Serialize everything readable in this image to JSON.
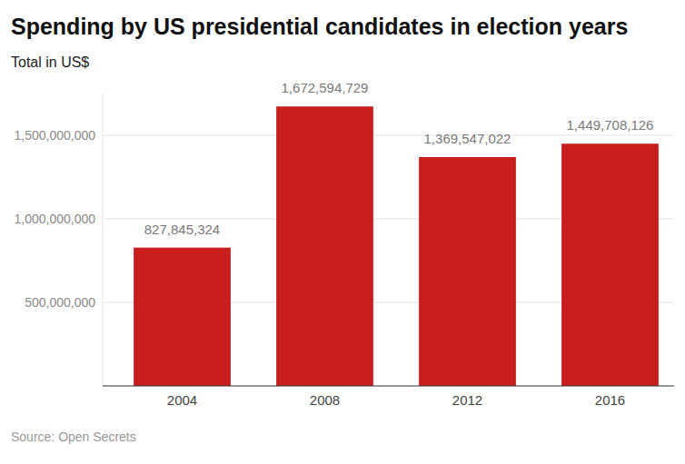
{
  "chart_data": {
    "type": "bar",
    "title": "Spending by US presidential candidates in election years",
    "subtitle": "Total in US$",
    "source": "Source: Open Secrets",
    "categories": [
      "2004",
      "2008",
      "2012",
      "2016"
    ],
    "values": [
      827845324,
      1672594729,
      1369547022,
      1449708126
    ],
    "value_labels": [
      "827,845,324",
      "1,672,594,729",
      "1,369,547,022",
      "1,449,708,126"
    ],
    "color": "#c81e1e",
    "ylim": [
      0,
      1750000000
    ],
    "yticks": [
      {
        "value": 500000000,
        "label": "500,000,000"
      },
      {
        "value": 1000000000,
        "label": "1,000,000,000"
      },
      {
        "value": 1500000000,
        "label": "1,500,000,000"
      }
    ],
    "grid": true,
    "data_labels": true
  }
}
